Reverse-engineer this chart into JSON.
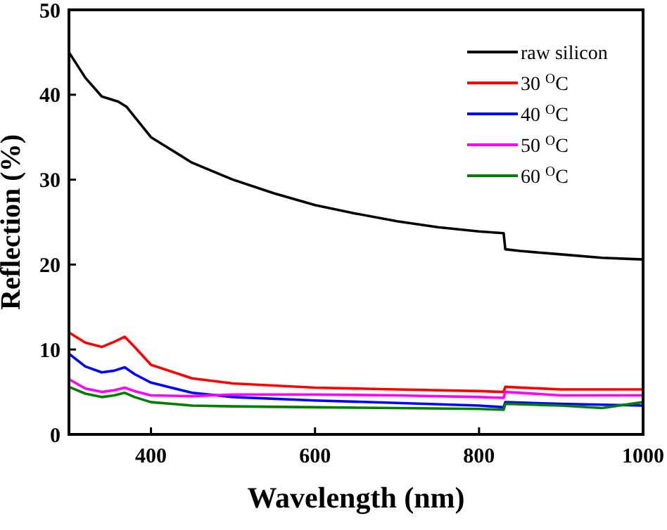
{
  "chart_data": {
    "type": "line",
    "xlabel": "Wavelength (nm)",
    "ylabel": "Reflection (%)",
    "xlim": [
      300,
      1000
    ],
    "ylim": [
      0,
      50
    ],
    "xticks": [
      400,
      600,
      800,
      1000
    ],
    "yticks": [
      0,
      10,
      20,
      30,
      40,
      50
    ],
    "legend": "top right",
    "grid": false,
    "series": [
      {
        "name": "raw silicon",
        "color": "#000000",
        "x": [
          300,
          320,
          340,
          360,
          370,
          380,
          400,
          450,
          500,
          550,
          600,
          650,
          700,
          750,
          800,
          830,
          832,
          850,
          900,
          950,
          1000
        ],
        "values": [
          45,
          42,
          39.8,
          39.2,
          38.6,
          37.4,
          35,
          32,
          30,
          28.4,
          27,
          26,
          25.1,
          24.4,
          23.9,
          23.7,
          21.8,
          21.6,
          21.2,
          20.8,
          20.6
        ]
      },
      {
        "name": "30 $^{O}$C",
        "color": "#ff0000",
        "x": [
          300,
          320,
          340,
          355,
          368,
          380,
          400,
          450,
          500,
          600,
          700,
          800,
          830,
          832,
          900,
          1000
        ],
        "values": [
          12,
          10.8,
          10.3,
          10.9,
          11.5,
          10.3,
          8.2,
          6.6,
          6,
          5.5,
          5.3,
          5.1,
          5,
          5.6,
          5.3,
          5.3
        ]
      },
      {
        "name": "40 $^{O}$C",
        "color": "#0000ff",
        "x": [
          300,
          320,
          340,
          355,
          368,
          380,
          400,
          450,
          500,
          600,
          700,
          800,
          830,
          832,
          900,
          1000
        ],
        "values": [
          9.5,
          8,
          7.3,
          7.5,
          7.9,
          7.1,
          6.1,
          4.9,
          4.4,
          4,
          3.7,
          3.4,
          3.2,
          3.8,
          3.6,
          3.4
        ]
      },
      {
        "name": "50 $^{O}$C",
        "color": "#ff00ff",
        "x": [
          300,
          320,
          340,
          355,
          368,
          380,
          400,
          450,
          500,
          600,
          700,
          800,
          830,
          832,
          900,
          1000
        ],
        "values": [
          6.5,
          5.4,
          5,
          5.2,
          5.5,
          5.1,
          4.6,
          4.5,
          4.7,
          4.7,
          4.6,
          4.4,
          4.3,
          5,
          4.6,
          4.6
        ]
      },
      {
        "name": "60 $^{O}$C",
        "color": "#008000",
        "x": [
          300,
          320,
          340,
          355,
          368,
          380,
          400,
          450,
          500,
          600,
          700,
          800,
          830,
          832,
          900,
          950,
          1000
        ],
        "values": [
          5.6,
          4.8,
          4.4,
          4.6,
          4.9,
          4.4,
          3.8,
          3.4,
          3.3,
          3.2,
          3.1,
          3,
          2.9,
          3.6,
          3.4,
          3.1,
          3.8
        ]
      }
    ]
  }
}
